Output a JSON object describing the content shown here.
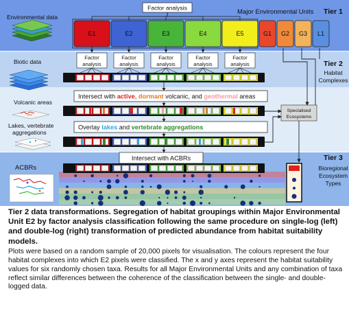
{
  "tier1": {
    "tier_label": "Tier 1",
    "factor_box": "Factor analysis",
    "meu_heading": "Major Environmental Units",
    "left_label": "Environmental data",
    "units": [
      {
        "label": "E1",
        "color": "#d8101a"
      },
      {
        "label": "E2",
        "color": "#3e63d3"
      },
      {
        "label": "E3",
        "color": "#49b43a"
      },
      {
        "label": "E4",
        "color": "#8ad93f"
      },
      {
        "label": "E5",
        "color": "#f2ee1c"
      },
      {
        "label": "G1",
        "color": "#e8472a"
      },
      {
        "label": "G2",
        "color": "#f08a3a"
      },
      {
        "label": "G3",
        "color": "#f3b25c"
      },
      {
        "label": "L1",
        "color": "#5a8fe0"
      }
    ]
  },
  "tier2": {
    "tier_label": "Tier 2",
    "right_label_line1": "Habitat",
    "right_label_line2": "Complexes",
    "left_label": "Biotic data",
    "factor_line1": "Factor",
    "factor_line2": "analysis",
    "volcanic_label": "Volcanic areas",
    "volcanic_box": {
      "pre": "Intersect with ",
      "active": "active",
      "comma": ", ",
      "dormant": "dormant",
      "mid": " volcanic, and ",
      "geothermal": "geothermal",
      "post": " areas"
    },
    "lakes_label_line1": "Lakes, vertebrate",
    "lakes_label_line2": "aggregations",
    "lakes_box": {
      "pre": "Overlay ",
      "lakes": "lakes",
      "mid": " and ",
      "vert": "vertebrate aggregations"
    },
    "specialised_line1": "Specialised",
    "specialised_line2": "Ecosystems"
  },
  "tier3": {
    "tier_label": "Tier 3",
    "left_label": "ACBRs",
    "intersect_box": "Intersect with ACBRs",
    "right_label_line1": "Bioregional",
    "right_label_line2": "Ecosystem",
    "right_label_line3": "Types"
  },
  "colors": {
    "tier1_bg": "#6f97e6",
    "tier2_bg": "#bcd4f2",
    "tier3_bg": "#8fb5ea",
    "active": "#e0201b",
    "dormant": "#e07a22",
    "geothermal": "#f09aa8",
    "lakes": "#2aa7e0",
    "vertebrate": "#2e8b2e",
    "dot": "#14307a"
  },
  "caption": {
    "title": "Tier 2 data transformations. Segregation of habitat groupings within Major Environmental Unit E2 by factor analysis classification following the same procedure on single-log (left) and double-log (right) transformation of predicted abundance from habitat suitability models.",
    "body": "Plots were based on a random sample of 20,000 pixels for visualisation. The colours represent the four habitat complexes into which E2 pixels were classified. The x and y axes represent the habitat suitability values for six randomly chosen taxa. Results for all Major Environmental Units and any combination of taxa reflect similar differences between the coherence of the classification between the single- and double-logged data."
  }
}
